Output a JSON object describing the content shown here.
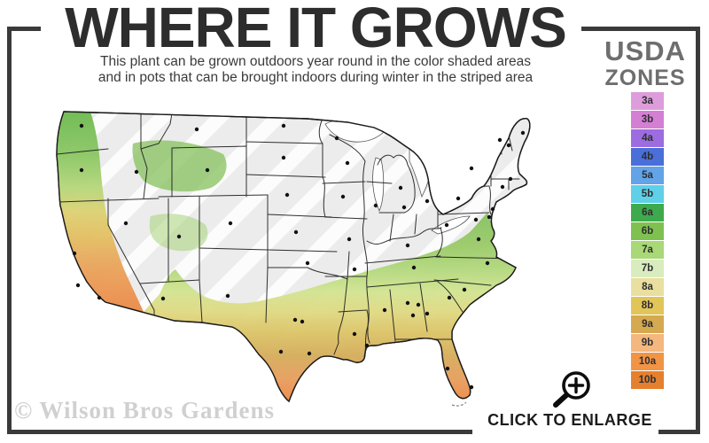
{
  "header": {
    "title": "WHERE IT GROWS",
    "subtitle_line1": "This plant can be grown outdoors year round in the color shaded areas",
    "subtitle_line2": "and in pots that can be brought indoors during winter in the striped area"
  },
  "legend": {
    "title_line1": "USDA",
    "title_line2": "ZONES",
    "zones": [
      {
        "label": "3a",
        "color": "#dd9cdc"
      },
      {
        "label": "3b",
        "color": "#d47fd4"
      },
      {
        "label": "4a",
        "color": "#9c6ce0"
      },
      {
        "label": "4b",
        "color": "#4a6fd9"
      },
      {
        "label": "5a",
        "color": "#63a3e8"
      },
      {
        "label": "5b",
        "color": "#5fd0e8"
      },
      {
        "label": "6a",
        "color": "#3faa4d"
      },
      {
        "label": "6b",
        "color": "#7fc150"
      },
      {
        "label": "7a",
        "color": "#a9d877"
      },
      {
        "label": "7b",
        "color": "#d9ecc0"
      },
      {
        "label": "8a",
        "color": "#e9df9e"
      },
      {
        "label": "8b",
        "color": "#e2c558"
      },
      {
        "label": "9a",
        "color": "#d4a94f"
      },
      {
        "label": "9b",
        "color": "#f4b77f"
      },
      {
        "label": "10a",
        "color": "#f29445"
      },
      {
        "label": "10b",
        "color": "#e5802f"
      }
    ]
  },
  "map": {
    "description": "US map shaded by USDA zones: striped gray north, green to orange bands across the south and west coast",
    "base_color": "#ececec",
    "border_color": "#1b1b1b"
  },
  "footer": {
    "watermark": "© Wilson Bros Gardens",
    "enlarge_label": "CLICK TO ENLARGE",
    "enlarge_icon": "magnifier-plus-icon"
  },
  "colors": {
    "frame": "#3a3a3a",
    "title_text": "#2d2d2d",
    "legend_header_text": "#6e6e6e",
    "watermark_text": "#d0d0d0"
  }
}
